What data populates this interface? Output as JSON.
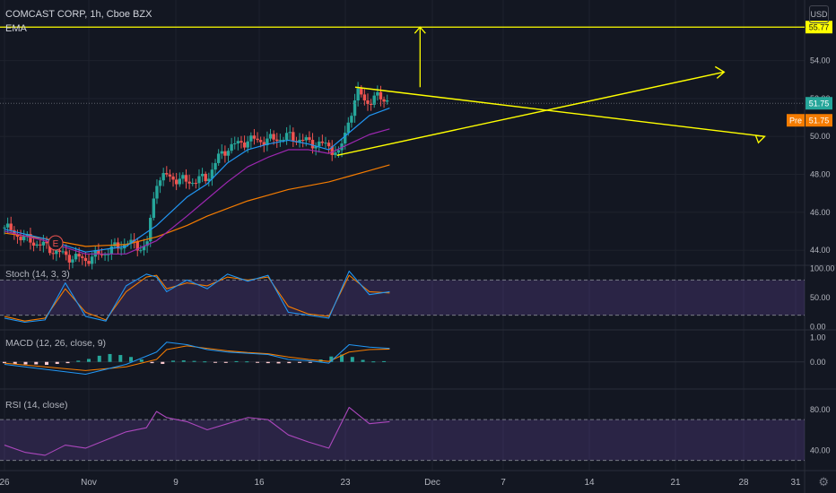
{
  "header": {
    "title": "COMCAST CORP, 1h, Cboe BZX",
    "indicator": "EMA",
    "currency": "USD",
    "settings_icon": "gear-icon"
  },
  "badges": {
    "resistance": "55.77",
    "last": "51.75",
    "pre_label": "Pre",
    "pre_value": "51.75"
  },
  "earnings_marker": "E",
  "colors": {
    "background": "#131722",
    "up": "#26a69a",
    "down": "#ef5350",
    "drawing": "#ffff00",
    "ema_fast": "#2196f3",
    "ema_mid": "#9c27b0",
    "ema_slow": "#f57c00",
    "oscillator": "#7e57c2",
    "last_badge": "#26a69a",
    "pre_badge": "#f57c00"
  },
  "chart_data": [
    {
      "type": "candlestick",
      "x_ticks": [
        "26",
        "Nov",
        "9",
        "16",
        "23",
        "Dec",
        "7",
        "14",
        "21",
        "28",
        "31"
      ],
      "y_ticks": [
        "54.00",
        "52.00",
        "50.00",
        "48.00",
        "46.00",
        "44.00"
      ],
      "ylim": [
        43.2,
        57.2
      ],
      "price_path": [
        [
          0,
          45.2
        ],
        [
          1,
          44.6
        ],
        [
          2,
          44.2
        ],
        [
          3,
          43.7
        ],
        [
          4,
          43.5
        ],
        [
          5,
          43.9
        ],
        [
          6,
          44.4
        ],
        [
          7,
          44.1
        ],
        [
          7.5,
          47.7
        ],
        [
          8,
          47.9
        ],
        [
          9,
          47.6
        ],
        [
          10,
          47.8
        ],
        [
          10.5,
          48.8
        ],
        [
          11,
          49.4
        ],
        [
          12,
          49.8
        ],
        [
          13,
          49.8
        ],
        [
          14,
          50.0
        ],
        [
          15,
          49.7
        ],
        [
          16,
          49.5
        ],
        [
          16.5,
          49.0
        ],
        [
          17,
          51.0
        ],
        [
          17.5,
          52.4
        ],
        [
          18,
          51.7
        ],
        [
          18.5,
          52.2
        ],
        [
          19,
          51.8
        ]
      ],
      "ema_fast": [
        [
          0,
          45.1
        ],
        [
          2,
          44.6
        ],
        [
          4,
          43.9
        ],
        [
          6,
          44.2
        ],
        [
          7.5,
          45.3
        ],
        [
          9,
          46.8
        ],
        [
          10,
          47.5
        ],
        [
          11,
          48.6
        ],
        [
          12,
          49.3
        ],
        [
          13,
          49.6
        ],
        [
          14,
          49.8
        ],
        [
          15,
          49.6
        ],
        [
          16,
          49.3
        ],
        [
          17,
          50.2
        ],
        [
          18,
          51.1
        ],
        [
          19,
          51.5
        ]
      ],
      "ema_mid": [
        [
          0,
          45.0
        ],
        [
          2,
          44.5
        ],
        [
          4,
          43.8
        ],
        [
          6,
          43.8
        ],
        [
          7.5,
          44.5
        ],
        [
          9,
          45.8
        ],
        [
          10,
          46.7
        ],
        [
          11,
          47.6
        ],
        [
          12,
          48.4
        ],
        [
          13,
          48.9
        ],
        [
          14,
          49.3
        ],
        [
          15,
          49.3
        ],
        [
          16,
          49.1
        ],
        [
          17,
          49.6
        ],
        [
          18,
          50.1
        ],
        [
          19,
          50.4
        ]
      ],
      "ema_slow": [
        [
          0,
          44.9
        ],
        [
          2,
          44.6
        ],
        [
          4,
          44.2
        ],
        [
          6,
          44.3
        ],
        [
          7.5,
          44.7
        ],
        [
          9,
          45.3
        ],
        [
          10,
          45.8
        ],
        [
          11,
          46.2
        ],
        [
          12,
          46.6
        ],
        [
          13,
          46.9
        ],
        [
          14,
          47.2
        ],
        [
          15,
          47.4
        ],
        [
          16,
          47.6
        ],
        [
          17,
          47.9
        ],
        [
          18,
          48.2
        ],
        [
          19,
          48.5
        ]
      ],
      "horizontal_lines": [
        55.77,
        51.75
      ],
      "triangle": {
        "upper": [
          [
            17.3,
            52.6
          ],
          [
            37.5,
            50.0
          ]
        ],
        "lower": [
          [
            16.4,
            49.0
          ],
          [
            35.5,
            53.4
          ]
        ],
        "target_arrow": [
          [
            20.5,
            52.6
          ],
          [
            20.5,
            55.77
          ]
        ]
      }
    },
    {
      "type": "line",
      "name": "Stoch (14, 3, 3)",
      "y_ticks": [
        "100.00",
        "50.00",
        "0.00"
      ],
      "ylim": [
        -5,
        105
      ],
      "band": [
        20,
        80
      ],
      "k": [
        [
          0,
          15
        ],
        [
          1,
          8
        ],
        [
          2,
          12
        ],
        [
          3,
          75
        ],
        [
          4,
          18
        ],
        [
          5,
          10
        ],
        [
          6,
          70
        ],
        [
          7,
          90
        ],
        [
          7.5,
          85
        ],
        [
          8,
          60
        ],
        [
          9,
          80
        ],
        [
          10,
          65
        ],
        [
          11,
          90
        ],
        [
          12,
          78
        ],
        [
          13,
          88
        ],
        [
          14,
          25
        ],
        [
          15,
          20
        ],
        [
          16,
          15
        ],
        [
          17,
          95
        ],
        [
          18,
          55
        ],
        [
          19,
          60
        ]
      ],
      "d": [
        [
          0,
          18
        ],
        [
          1,
          10
        ],
        [
          2,
          15
        ],
        [
          3,
          65
        ],
        [
          4,
          25
        ],
        [
          5,
          12
        ],
        [
          6,
          60
        ],
        [
          7,
          85
        ],
        [
          7.5,
          88
        ],
        [
          8,
          65
        ],
        [
          9,
          75
        ],
        [
          10,
          70
        ],
        [
          11,
          85
        ],
        [
          12,
          80
        ],
        [
          13,
          85
        ],
        [
          14,
          35
        ],
        [
          15,
          22
        ],
        [
          16,
          18
        ],
        [
          17,
          88
        ],
        [
          18,
          60
        ],
        [
          19,
          58
        ]
      ]
    },
    {
      "type": "bar",
      "name": "MACD (12, 26, close, 9)",
      "y_ticks": [
        "1.00",
        "0.00"
      ],
      "ylim": [
        -1.1,
        1.3
      ],
      "macd": [
        [
          0,
          -0.1
        ],
        [
          2,
          -0.3
        ],
        [
          4,
          -0.5
        ],
        [
          6,
          -0.1
        ],
        [
          7.5,
          0.4
        ],
        [
          8,
          0.8
        ],
        [
          9,
          0.7
        ],
        [
          10,
          0.5
        ],
        [
          11,
          0.4
        ],
        [
          12,
          0.35
        ],
        [
          13,
          0.3
        ],
        [
          14,
          0.1
        ],
        [
          15,
          0.05
        ],
        [
          16,
          -0.05
        ],
        [
          17,
          0.7
        ],
        [
          18,
          0.6
        ],
        [
          19,
          0.55
        ]
      ],
      "signal": [
        [
          0,
          -0.05
        ],
        [
          2,
          -0.2
        ],
        [
          4,
          -0.35
        ],
        [
          6,
          -0.2
        ],
        [
          7.5,
          0.1
        ],
        [
          8,
          0.5
        ],
        [
          9,
          0.65
        ],
        [
          10,
          0.55
        ],
        [
          11,
          0.45
        ],
        [
          12,
          0.38
        ],
        [
          13,
          0.33
        ],
        [
          14,
          0.2
        ],
        [
          15,
          0.1
        ],
        [
          16,
          0.02
        ],
        [
          17,
          0.4
        ],
        [
          18,
          0.5
        ],
        [
          19,
          0.52
        ]
      ],
      "histogram": [
        -0.05,
        -0.08,
        -0.1,
        -0.1,
        -0.12,
        -0.08,
        -0.05,
        0.05,
        0.12,
        0.25,
        0.32,
        0.28,
        0.2,
        0.1,
        -0.05,
        -0.08,
        0.05,
        0.06,
        0.04,
        0.02,
        -0.02,
        -0.04,
        0.03,
        0.02,
        -0.03,
        -0.05,
        -0.06,
        -0.05,
        -0.04,
        -0.03,
        0.1,
        0.22,
        0.3,
        0.2,
        0.08,
        0.02,
        0.03
      ]
    },
    {
      "type": "line",
      "name": "RSI (14, close)",
      "y_ticks": [
        "80.00",
        "40.00"
      ],
      "ylim": [
        20,
        100
      ],
      "band": [
        30,
        70
      ],
      "rsi": [
        [
          0,
          45
        ],
        [
          1,
          38
        ],
        [
          2,
          35
        ],
        [
          3,
          45
        ],
        [
          4,
          42
        ],
        [
          5,
          50
        ],
        [
          6,
          58
        ],
        [
          7,
          62
        ],
        [
          7.5,
          78
        ],
        [
          8,
          72
        ],
        [
          9,
          68
        ],
        [
          10,
          60
        ],
        [
          11,
          66
        ],
        [
          12,
          72
        ],
        [
          13,
          70
        ],
        [
          14,
          55
        ],
        [
          15,
          48
        ],
        [
          16,
          42
        ],
        [
          17,
          82
        ],
        [
          18,
          66
        ],
        [
          19,
          68
        ]
      ]
    }
  ]
}
